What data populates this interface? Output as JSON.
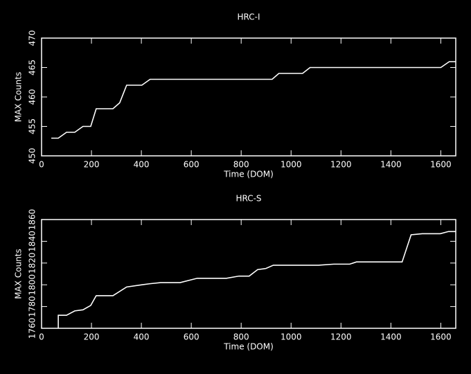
{
  "chart_data": [
    {
      "type": "line",
      "title": "HRC-I",
      "x_label": "Time (DOM)",
      "y_label": "MAX Counts",
      "x": [
        39,
        67,
        100,
        133,
        166,
        197,
        219,
        286,
        313,
        341,
        402,
        435,
        924,
        951,
        1046,
        1076,
        1600,
        1634,
        1659
      ],
      "series": [
        {
          "color": "#ffffff",
          "values": [
            453,
            453,
            454,
            454,
            455,
            455,
            458,
            458,
            459,
            462,
            462,
            463,
            463,
            464,
            464,
            465,
            465,
            466,
            466
          ]
        }
      ],
      "xlim": [
        0,
        1660
      ],
      "ylim": [
        450,
        470
      ],
      "xticks": [
        0,
        200,
        400,
        600,
        800,
        1000,
        1200,
        1400,
        1600
      ],
      "yticks": [
        450,
        455,
        460,
        465,
        470
      ]
    },
    {
      "type": "line",
      "title": "HRC-S",
      "x_label": "Time (DOM)",
      "y_label": "MAX Counts",
      "x": [
        67,
        67,
        100,
        133,
        166,
        197,
        219,
        286,
        341,
        402,
        435,
        477,
        555,
        624,
        741,
        791,
        832,
        866,
        899,
        929,
        1110,
        1171,
        1235,
        1262,
        1445,
        1481,
        1526,
        1598,
        1631,
        1659
      ],
      "series": [
        {
          "color": "#ffffff",
          "values": [
            1760,
            1772,
            1772,
            1776,
            1777,
            1781,
            1790,
            1790,
            1798,
            1800,
            1801,
            1802,
            1802,
            1806,
            1806,
            1808,
            1808,
            1814,
            1815,
            1818,
            1818,
            1819,
            1819,
            1821,
            1821,
            1846,
            1847,
            1847,
            1849,
            1849
          ]
        }
      ],
      "xlim": [
        0,
        1660
      ],
      "ylim": [
        1760,
        1860
      ],
      "xticks": [
        0,
        200,
        400,
        600,
        800,
        1000,
        1200,
        1400,
        1600
      ],
      "yticks": [
        1760,
        1780,
        1800,
        1820,
        1840,
        1860
      ]
    }
  ]
}
